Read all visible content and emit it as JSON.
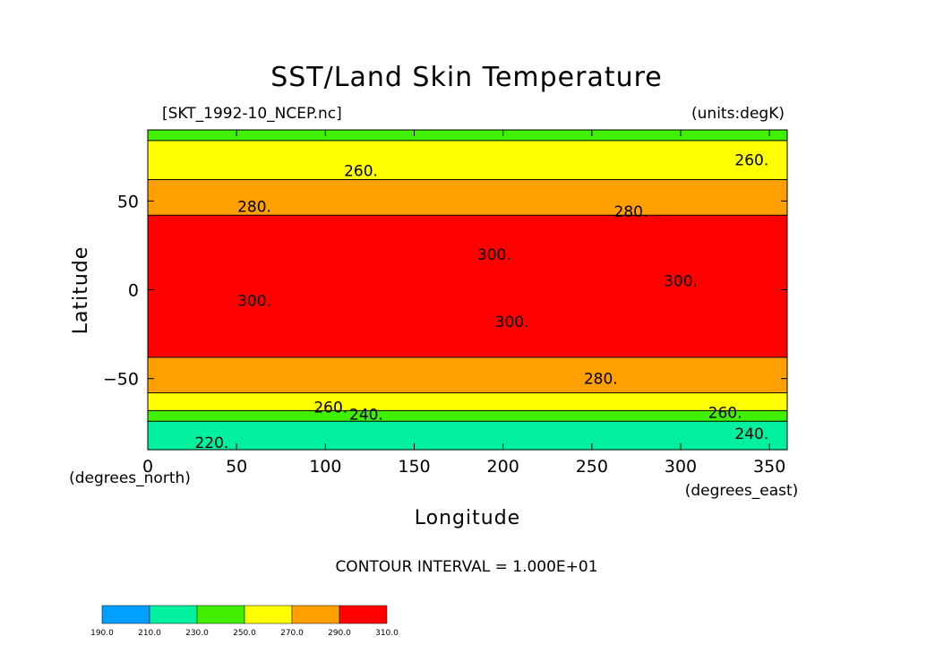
{
  "chart_data": {
    "type": "heatmap",
    "title": "SST/Land Skin Temperature",
    "file_label": "[SKT_1992-10_NCEP.nc]",
    "units_label": "(units:degK)",
    "xlabel": "Longitude",
    "ylabel": "Latitude",
    "x_unit_label": "(degrees_east)",
    "y_unit_label": "(degrees_north)",
    "xlim": [
      0,
      360
    ],
    "ylim": [
      -90,
      90
    ],
    "xticks": [
      0,
      50,
      100,
      150,
      200,
      250,
      300,
      350
    ],
    "yticks": [
      -50,
      0,
      50
    ],
    "footer": "CONTOUR INTERVAL = 1.000E+01",
    "colorbar": {
      "levels": [
        "190.0",
        "210.0",
        "230.0",
        "250.0",
        "270.0",
        "290.0",
        "310.0"
      ],
      "colors": [
        "#00a0ff",
        "#00f0a0",
        "#40f000",
        "#ffff00",
        "#ffa000",
        "#ff0000"
      ]
    },
    "zonal_bands": [
      {
        "lat_from": 90,
        "lat_to": 84,
        "value": 245
      },
      {
        "lat_from": 84,
        "lat_to": 62,
        "value": 262
      },
      {
        "lat_from": 62,
        "lat_to": 42,
        "value": 280
      },
      {
        "lat_from": 42,
        "lat_to": -38,
        "value": 296
      },
      {
        "lat_from": -38,
        "lat_to": -58,
        "value": 282
      },
      {
        "lat_from": -58,
        "lat_to": -68,
        "value": 262
      },
      {
        "lat_from": -68,
        "lat_to": -74,
        "value": 245
      },
      {
        "lat_from": -74,
        "lat_to": -90,
        "value": 228
      }
    ],
    "contour_labels": [
      {
        "text": "260.",
        "lon": 120,
        "lat": 67
      },
      {
        "text": "260.",
        "lon": 340,
        "lat": 73
      },
      {
        "text": "280.",
        "lon": 60,
        "lat": 47
      },
      {
        "text": "280.",
        "lon": 272,
        "lat": 44
      },
      {
        "text": "300.",
        "lon": 195,
        "lat": 20
      },
      {
        "text": "300.",
        "lon": 300,
        "lat": 5
      },
      {
        "text": "300.",
        "lon": 60,
        "lat": -6
      },
      {
        "text": "300.",
        "lon": 205,
        "lat": -18
      },
      {
        "text": "280.",
        "lon": 255,
        "lat": -50
      },
      {
        "text": "260.",
        "lon": 103,
        "lat": -66
      },
      {
        "text": "240.",
        "lon": 123,
        "lat": -70
      },
      {
        "text": "260.",
        "lon": 325,
        "lat": -69
      },
      {
        "text": "240.",
        "lon": 340,
        "lat": -81
      },
      {
        "text": "220.",
        "lon": 36,
        "lat": -86
      }
    ]
  }
}
